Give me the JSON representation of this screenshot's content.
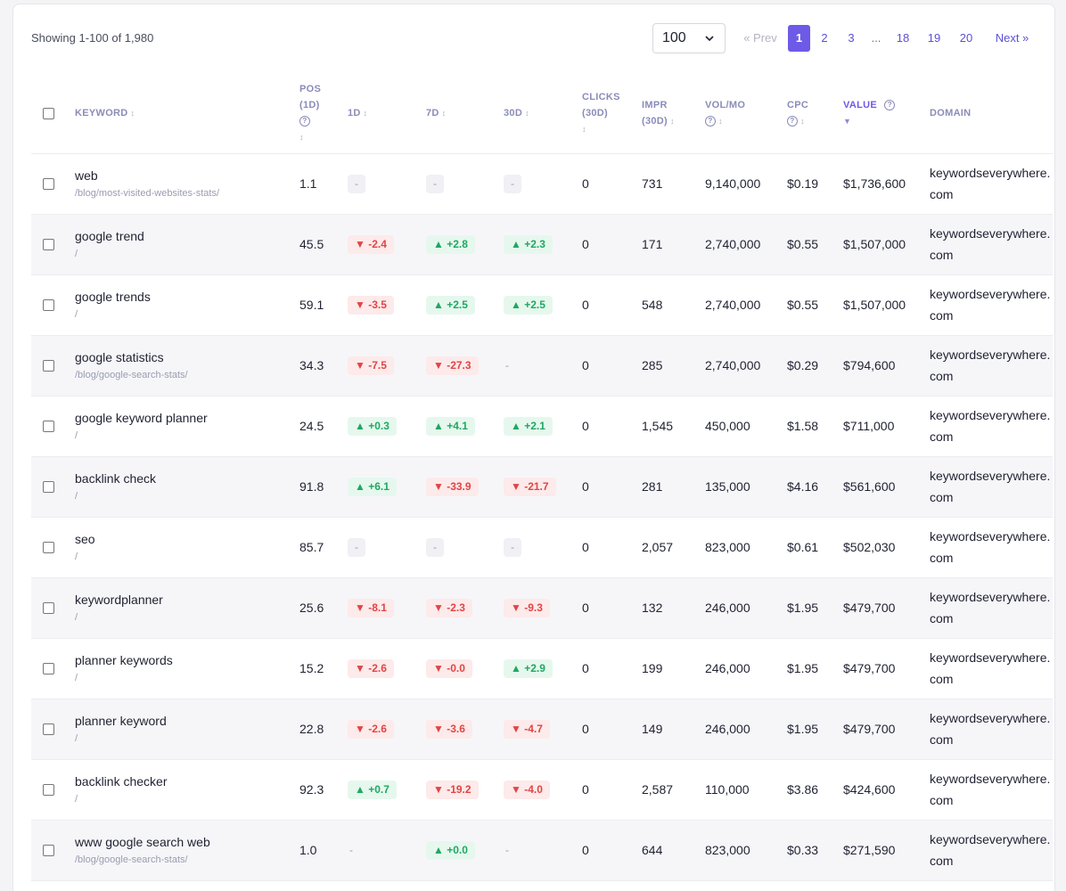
{
  "pagination": {
    "showing": "Showing 1-100 of 1,980",
    "per_page": "100",
    "prev": "« Prev",
    "pages": [
      "1",
      "2",
      "3",
      "...",
      "18",
      "19",
      "20"
    ],
    "active_page": "1",
    "next": "Next »"
  },
  "columns": {
    "keyword": "KEYWORD",
    "pos_1": "POS",
    "pos_2": "(1D)",
    "d1": "1D",
    "d7": "7D",
    "d30": "30D",
    "clicks_1": "CLICKS",
    "clicks_2": "(30D)",
    "impr_1": "IMPR",
    "impr_2": "(30D)",
    "vol": "VOL/MO",
    "cpc": "CPC",
    "value": "VALUE",
    "domain": "DOMAIN"
  },
  "colors": {
    "accent": "#6d5ae6",
    "up": "#1fa862",
    "down": "#e04545"
  },
  "rows": [
    {
      "keyword": "web",
      "url": "/blog/most-visited-websites-stats/",
      "pos": "1.1",
      "d1": "-",
      "d1_type": "flat",
      "d7": "-",
      "d7_type": "flat",
      "d30": "-",
      "d30_type": "flat",
      "clicks": "0",
      "impr": "731",
      "vol": "9,140,000",
      "cpc": "$0.19",
      "value": "$1,736,600",
      "domain": "keywordseverywhere.com"
    },
    {
      "keyword": "google trend",
      "url": "/",
      "pos": "45.5",
      "d1": "▼ -2.4",
      "d1_type": "down",
      "d7": "▲ +2.8",
      "d7_type": "up",
      "d30": "▲ +2.3",
      "d30_type": "up",
      "clicks": "0",
      "impr": "171",
      "vol": "2,740,000",
      "cpc": "$0.55",
      "value": "$1,507,000",
      "domain": "keywordseverywhere.com"
    },
    {
      "keyword": "google trends",
      "url": "/",
      "pos": "59.1",
      "d1": "▼ -3.5",
      "d1_type": "down",
      "d7": "▲ +2.5",
      "d7_type": "up",
      "d30": "▲ +2.5",
      "d30_type": "up",
      "clicks": "0",
      "impr": "548",
      "vol": "2,740,000",
      "cpc": "$0.55",
      "value": "$1,507,000",
      "domain": "keywordseverywhere.com"
    },
    {
      "keyword": "google statistics",
      "url": "/blog/google-search-stats/",
      "pos": "34.3",
      "d1": "▼ -7.5",
      "d1_type": "down",
      "d7": "▼ -27.3",
      "d7_type": "down",
      "d30": "-",
      "d30_type": "dash",
      "clicks": "0",
      "impr": "285",
      "vol": "2,740,000",
      "cpc": "$0.29",
      "value": "$794,600",
      "domain": "keywordseverywhere.com"
    },
    {
      "keyword": "google keyword planner",
      "url": "/",
      "pos": "24.5",
      "d1": "▲ +0.3",
      "d1_type": "up",
      "d7": "▲ +4.1",
      "d7_type": "up",
      "d30": "▲ +2.1",
      "d30_type": "up",
      "clicks": "0",
      "impr": "1,545",
      "vol": "450,000",
      "cpc": "$1.58",
      "value": "$711,000",
      "domain": "keywordseverywhere.com"
    },
    {
      "keyword": "backlink check",
      "url": "/",
      "pos": "91.8",
      "d1": "▲ +6.1",
      "d1_type": "up",
      "d7": "▼ -33.9",
      "d7_type": "down",
      "d30": "▼ -21.7",
      "d30_type": "down",
      "clicks": "0",
      "impr": "281",
      "vol": "135,000",
      "cpc": "$4.16",
      "value": "$561,600",
      "domain": "keywordseverywhere.com"
    },
    {
      "keyword": "seo",
      "url": "/",
      "pos": "85.7",
      "d1": "-",
      "d1_type": "flat",
      "d7": "-",
      "d7_type": "flat",
      "d30": "-",
      "d30_type": "flat",
      "clicks": "0",
      "impr": "2,057",
      "vol": "823,000",
      "cpc": "$0.61",
      "value": "$502,030",
      "domain": "keywordseverywhere.com"
    },
    {
      "keyword": "keywordplanner",
      "url": "/",
      "pos": "25.6",
      "d1": "▼ -8.1",
      "d1_type": "down",
      "d7": "▼ -2.3",
      "d7_type": "down",
      "d30": "▼ -9.3",
      "d30_type": "down",
      "clicks": "0",
      "impr": "132",
      "vol": "246,000",
      "cpc": "$1.95",
      "value": "$479,700",
      "domain": "keywordseverywhere.com"
    },
    {
      "keyword": "planner keywords",
      "url": "/",
      "pos": "15.2",
      "d1": "▼ -2.6",
      "d1_type": "down",
      "d7": "▼ -0.0",
      "d7_type": "down",
      "d30": "▲ +2.9",
      "d30_type": "up",
      "clicks": "0",
      "impr": "199",
      "vol": "246,000",
      "cpc": "$1.95",
      "value": "$479,700",
      "domain": "keywordseverywhere.com"
    },
    {
      "keyword": "planner keyword",
      "url": "/",
      "pos": "22.8",
      "d1": "▼ -2.6",
      "d1_type": "down",
      "d7": "▼ -3.6",
      "d7_type": "down",
      "d30": "▼ -4.7",
      "d30_type": "down",
      "clicks": "0",
      "impr": "149",
      "vol": "246,000",
      "cpc": "$1.95",
      "value": "$479,700",
      "domain": "keywordseverywhere.com"
    },
    {
      "keyword": "backlink checker",
      "url": "/",
      "pos": "92.3",
      "d1": "▲ +0.7",
      "d1_type": "up",
      "d7": "▼ -19.2",
      "d7_type": "down",
      "d30": "▼ -4.0",
      "d30_type": "down",
      "clicks": "0",
      "impr": "2,587",
      "vol": "110,000",
      "cpc": "$3.86",
      "value": "$424,600",
      "domain": "keywordseverywhere.com"
    },
    {
      "keyword": "www google search web",
      "url": "/blog/google-search-stats/",
      "pos": "1.0",
      "d1": "-",
      "d1_type": "dash",
      "d7": "▲ +0.0",
      "d7_type": "up",
      "d30": "-",
      "d30_type": "dash",
      "clicks": "0",
      "impr": "644",
      "vol": "823,000",
      "cpc": "$0.33",
      "value": "$271,590",
      "domain": "keywordseverywhere.com"
    }
  ]
}
